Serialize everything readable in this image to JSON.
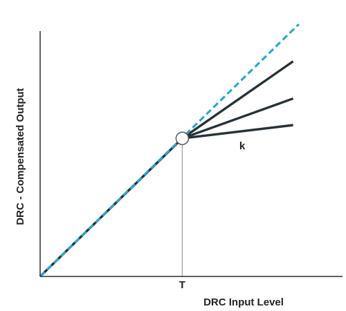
{
  "chart_data": {
    "type": "line",
    "xlabel": "DRC Input Level",
    "ylabel": "DRC - Compensated Output",
    "x_tick_labels": [
      {
        "x": 0.5,
        "label": "T"
      }
    ],
    "xlim": [
      0,
      0.93
    ],
    "ylim": [
      0,
      0.95
    ],
    "grid": false,
    "threshold": {
      "x": 0.5,
      "label": "T"
    },
    "annotation": {
      "label": "k"
    },
    "series": [
      {
        "style": "dashed",
        "color": "#2aa7d6",
        "points": [
          [
            0,
            0
          ],
          [
            0.91,
            0.95
          ]
        ]
      },
      {
        "style": "solid",
        "color": "#263238",
        "points": [
          [
            0,
            0
          ],
          [
            0.5,
            0.52
          ],
          [
            0.89,
            0.81
          ]
        ]
      },
      {
        "style": "solid",
        "color": "#263238",
        "points": [
          [
            0.5,
            0.52
          ],
          [
            0.89,
            0.67
          ]
        ]
      },
      {
        "style": "solid",
        "color": "#263238",
        "points": [
          [
            0.5,
            0.52
          ],
          [
            0.89,
            0.57
          ]
        ]
      }
    ],
    "knee": {
      "x": 0.5,
      "y": 0.52
    }
  },
  "colors": {
    "axis": "#2b2b2b",
    "threshold_line": "#9e9e9e",
    "dashed_line": "#2aa7d6",
    "solid_lines": "#263238"
  }
}
